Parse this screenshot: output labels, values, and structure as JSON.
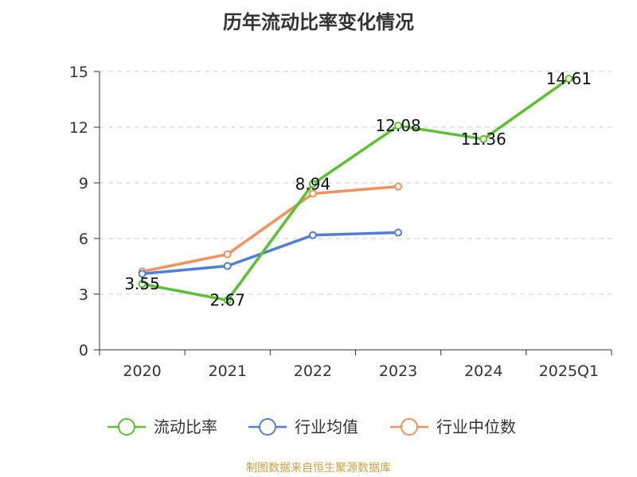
{
  "chart_data": {
    "type": "line",
    "title": "历年流动比率变化情况",
    "categories": [
      "2020",
      "2021",
      "2022",
      "2023",
      "2024",
      "2025Q1"
    ],
    "ylim": [
      0,
      15
    ],
    "yticks": [
      0,
      3,
      6,
      9,
      12,
      15
    ],
    "grid": true,
    "legend_position": "bottom",
    "series": [
      {
        "name": "流动比率",
        "color": "#5cc12f",
        "values": [
          3.55,
          2.67,
          8.94,
          12.08,
          11.36,
          14.61
        ],
        "labels": [
          "3.55",
          "2.67",
          "8.94",
          "12.08",
          "11.36",
          "14.61"
        ]
      },
      {
        "name": "行业均值",
        "color": "#4f7fdb",
        "values": [
          4.1,
          4.52,
          6.18,
          6.32,
          null,
          null
        ]
      },
      {
        "name": "行业中位数",
        "color": "#f5905b",
        "values": [
          4.22,
          5.15,
          8.42,
          8.8,
          null,
          null
        ]
      }
    ]
  },
  "footer": {
    "source": "制图数据来自恒生聚源数据库",
    "source_color": "#c9a23d"
  }
}
